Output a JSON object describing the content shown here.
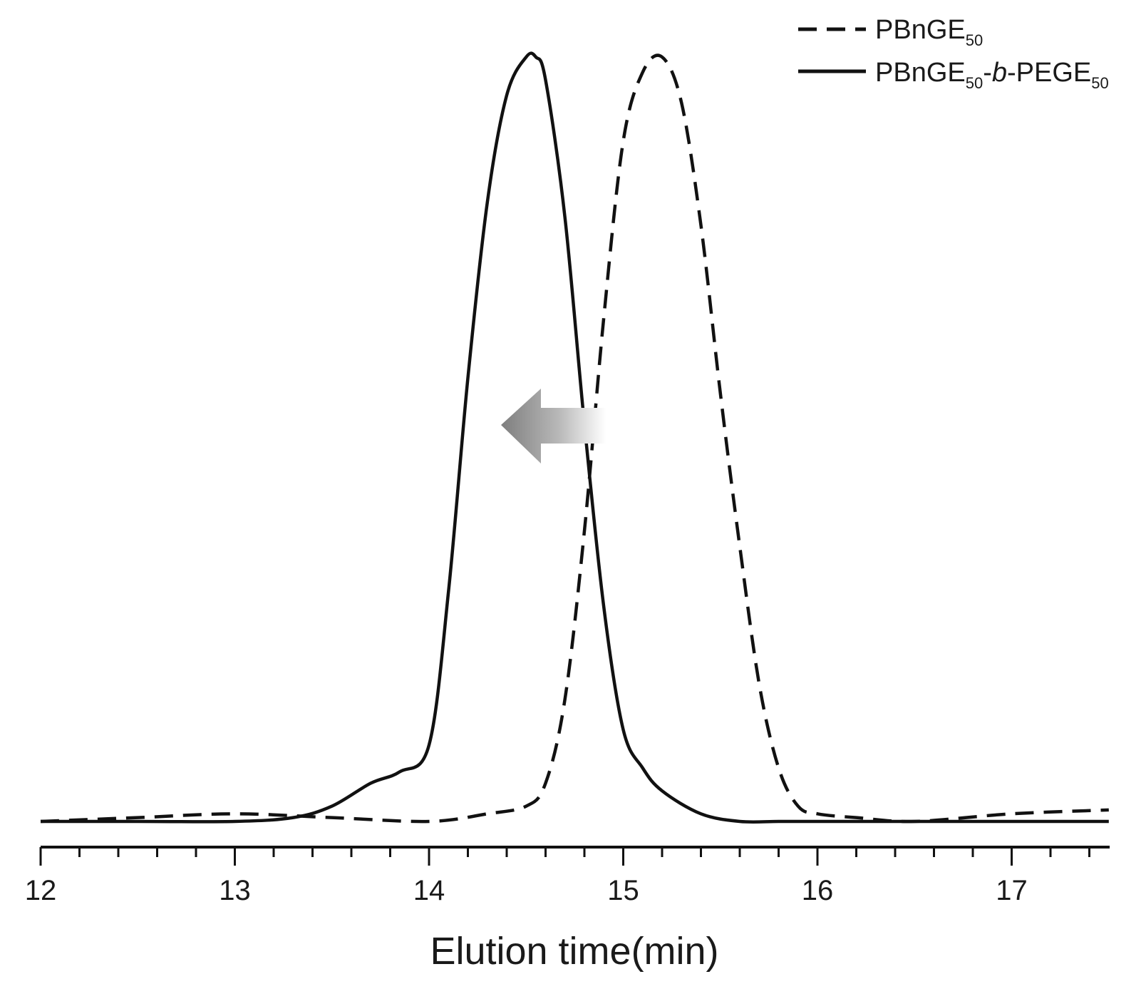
{
  "chart_data": {
    "type": "line",
    "title": "",
    "xlabel": "Elution time(min)",
    "ylabel": "",
    "xlim": [
      12,
      17.5
    ],
    "ylim": [
      0,
      1
    ],
    "x_ticks": [
      "12",
      "13",
      "14",
      "15",
      "16",
      "17"
    ],
    "grid": false,
    "legend_position": "top-right",
    "annotation": "arrow pointing left (shift to shorter elution time)",
    "series": [
      {
        "name_parts": {
          "main": "PBnGE",
          "sub": "50"
        },
        "style": "dashed",
        "x": [
          12.0,
          12.5,
          13.0,
          13.5,
          14.0,
          14.3,
          14.5,
          14.6,
          14.7,
          14.8,
          14.9,
          15.0,
          15.1,
          15.2,
          15.3,
          15.4,
          15.5,
          15.6,
          15.7,
          15.8,
          15.9,
          16.0,
          16.2,
          16.5,
          17.0,
          17.5
        ],
        "values": [
          0.0,
          0.005,
          0.01,
          0.005,
          0.0,
          0.01,
          0.02,
          0.05,
          0.16,
          0.38,
          0.66,
          0.89,
          0.98,
          1.0,
          0.94,
          0.78,
          0.56,
          0.36,
          0.18,
          0.07,
          0.02,
          0.01,
          0.005,
          0.0,
          0.01,
          0.015
        ]
      },
      {
        "name_parts": {
          "main": "PBnGE",
          "sub": "50",
          "mid": "-",
          "italic": "b",
          "tail": "-PEGE",
          "sub2": "50"
        },
        "style": "solid",
        "x": [
          12.0,
          12.5,
          13.0,
          13.3,
          13.5,
          13.7,
          13.85,
          14.0,
          14.1,
          14.2,
          14.3,
          14.4,
          14.5,
          14.55,
          14.6,
          14.7,
          14.8,
          14.9,
          15.0,
          15.1,
          15.2,
          15.4,
          15.6,
          15.8,
          16.0,
          16.5,
          17.0,
          17.5
        ],
        "values": [
          0.0,
          0.0,
          0.0,
          0.005,
          0.02,
          0.05,
          0.065,
          0.1,
          0.3,
          0.58,
          0.81,
          0.95,
          1.0,
          1.0,
          0.97,
          0.79,
          0.52,
          0.28,
          0.12,
          0.07,
          0.04,
          0.01,
          0.0,
          0.0,
          0.0,
          0.0,
          0.0,
          0.0
        ]
      }
    ]
  },
  "colors": {
    "line": "#111111",
    "arrow_dark": "#808080",
    "arrow_light": "#ffffff"
  }
}
